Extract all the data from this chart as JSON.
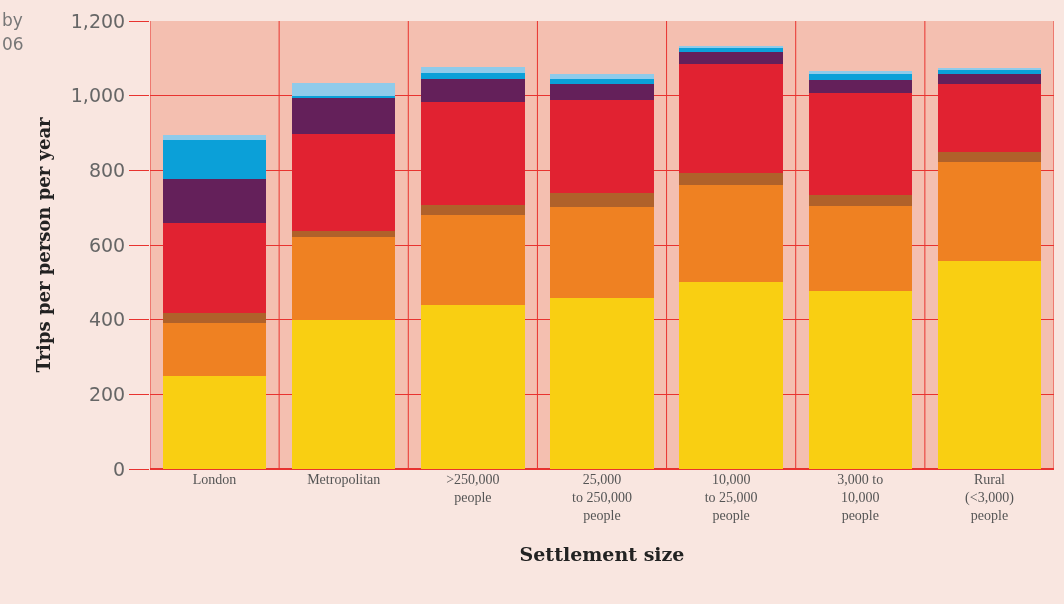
{
  "chart_data": {
    "type": "bar",
    "stacked": true,
    "xlabel": "Settlement size",
    "ylabel": "Trips per person per year",
    "annotations": [
      "by",
      "06"
    ],
    "categories": [
      "London",
      "Metropolitan",
      ">250,000\npeople",
      "25,000\nto 250,000\npeople",
      "10,000\nto 25,000\npeople",
      "3,000 to\n10,000\npeople",
      "Rural\n(<3,000)\npeople"
    ],
    "series": [
      {
        "color": "#f9cf12",
        "values": [
          250,
          400,
          440,
          458,
          501,
          476,
          556
        ]
      },
      {
        "color": "#ef8122",
        "values": [
          142,
          222,
          240,
          244,
          259,
          229,
          266
        ]
      },
      {
        "color": "#b0612a",
        "values": [
          27,
          16,
          27,
          36,
          33,
          28,
          28
        ]
      },
      {
        "color": "#e12231",
        "values": [
          241,
          258,
          277,
          250,
          293,
          273,
          180
        ]
      },
      {
        "color": "#64205a",
        "values": [
          118,
          99,
          61,
          44,
          31,
          36,
          27
        ]
      },
      {
        "color": "#0ba0d8",
        "values": [
          102,
          5,
          16,
          12,
          11,
          15,
          13
        ]
      },
      {
        "color": "#8fcbea",
        "values": [
          15,
          35,
          16,
          13,
          5,
          9,
          5
        ]
      }
    ],
    "ylim": [
      0,
      1200
    ],
    "yticks": [
      0,
      {
        "value": 200,
        "label": "200"
      },
      {
        "value": 400,
        "label": "400"
      },
      {
        "value": 600,
        "label": "600"
      },
      {
        "value": 800,
        "label": "800"
      },
      {
        "value": 1000,
        "label": "1,000"
      },
      {
        "value": 1200,
        "label": "1,200"
      }
    ],
    "bands": [
      {
        "axis": "y",
        "from": 0,
        "to": 1200,
        "color": "#f4bfb0"
      }
    ],
    "grid": true
  }
}
